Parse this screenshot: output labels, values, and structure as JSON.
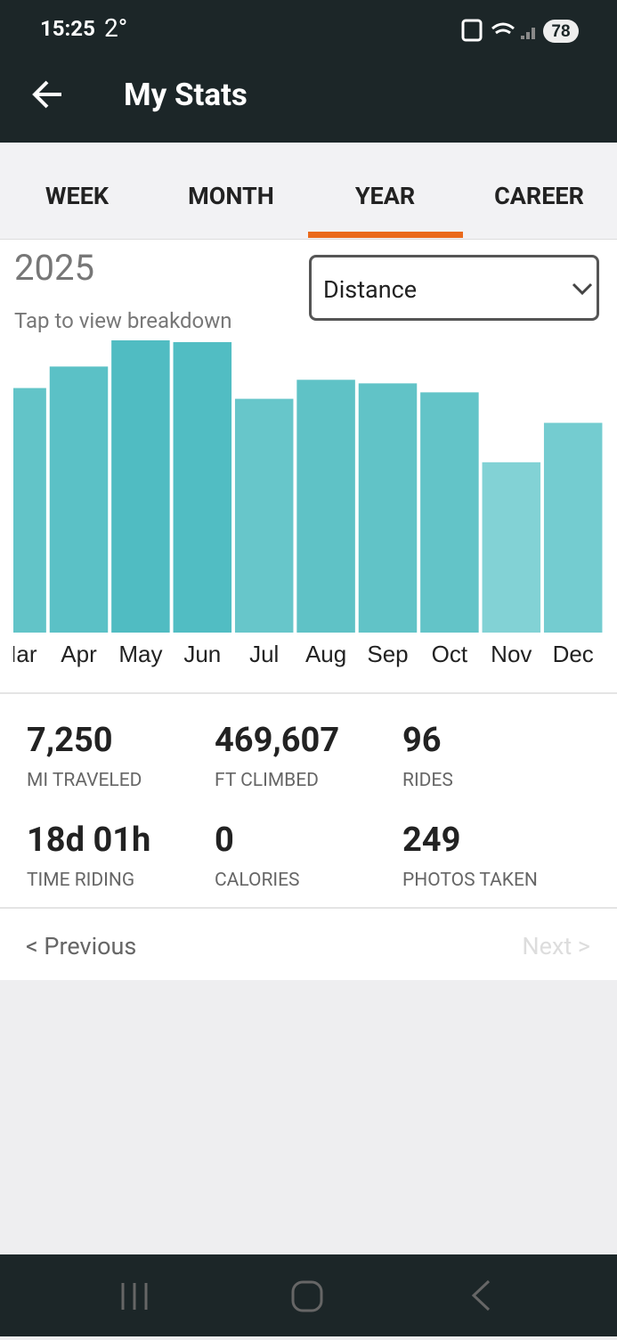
{
  "status_bar": {
    "time": "15:25",
    "temperature": "2°",
    "battery": "78"
  },
  "header": {
    "title": "My Stats"
  },
  "tabs": [
    "WEEK",
    "MONTH",
    "YEAR",
    "CAREER"
  ],
  "period": "2025",
  "hint": "Tap to view breakdown",
  "dropdown": "Distance",
  "chart_data": {
    "type": "bar",
    "categories": [
      "Mar",
      "Apr",
      "May",
      "Jun",
      "Jul",
      "Aug",
      "Sep",
      "Oct",
      "Nov",
      "Dec"
    ],
    "values": [
      682,
      742,
      815,
      810,
      652,
      705,
      695,
      670,
      475,
      585
    ],
    "colors": [
      "#62c4c8",
      "#5bc1c6",
      "#50bcc2",
      "#51bdc3",
      "#67c6ca",
      "#5fc2c6",
      "#61c3c7",
      "#63c4c8",
      "#82d2d5",
      "#74ccd0"
    ],
    "ylim": [
      0,
      820
    ]
  },
  "stats": [
    {
      "value": "7,250",
      "label": "MI TRAVELED"
    },
    {
      "value": "469,607",
      "label": "FT CLIMBED"
    },
    {
      "value": "96",
      "label": "RIDES"
    },
    {
      "value": "18d 01h",
      "label": "TIME RIDING"
    },
    {
      "value": "0",
      "label": "CALORIES"
    },
    {
      "value": "249",
      "label": "PHOTOS TAKEN"
    }
  ],
  "pager": {
    "previous": "< Previous",
    "next": "Next >"
  }
}
